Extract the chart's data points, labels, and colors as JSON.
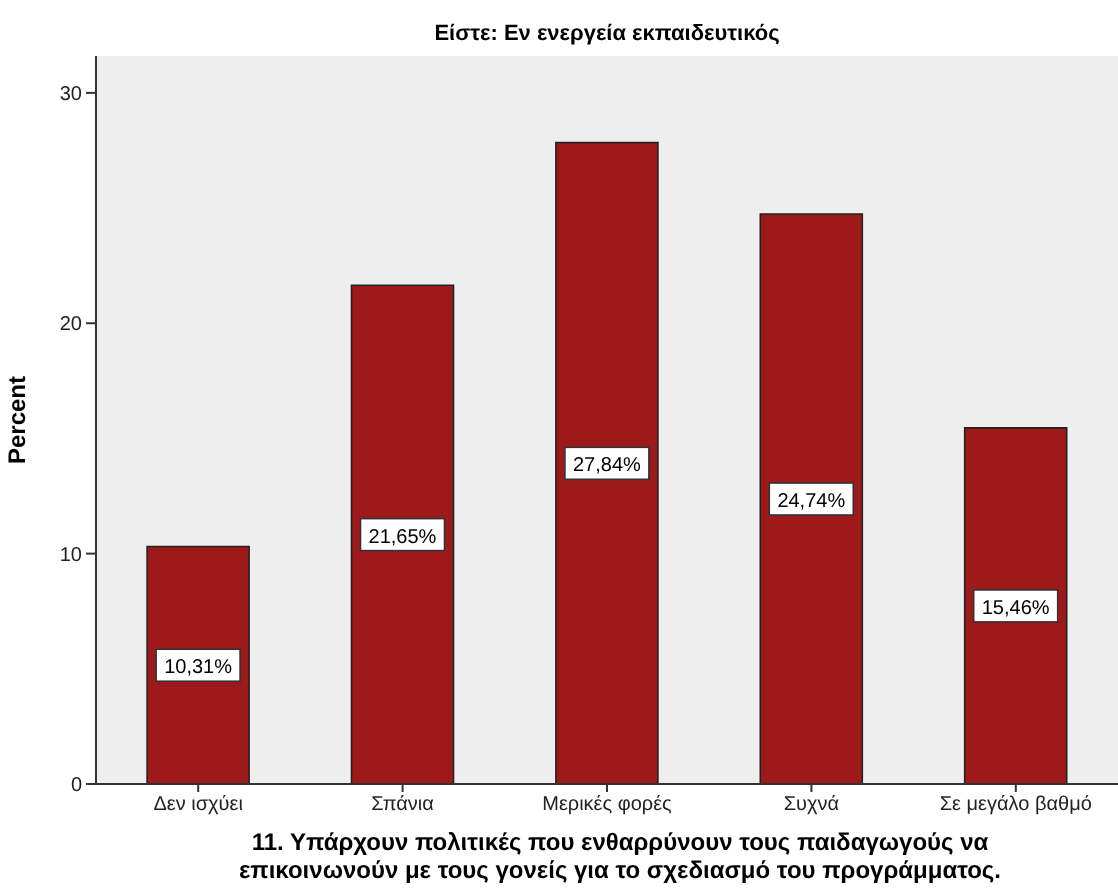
{
  "chart_data": {
    "type": "bar",
    "title": "Είστε: Εν ενεργεία εκπαιδευτικός",
    "xlabel": "11. Υπάρχουν πολιτικές που ενθαρρύνουν τους παιδαγωγούς να επικοινωνούν με τους γονείς για το σχεδιασμό του προγράμματος.",
    "ylabel": "Percent",
    "categories": [
      "Δεν ισχύει",
      "Σπάνια",
      "Μερικές φορές",
      "Συχνά",
      "Σε μεγάλο βαθμό"
    ],
    "values": [
      10.31,
      21.65,
      27.84,
      24.74,
      15.46
    ],
    "value_labels": [
      "10,31%",
      "21,65%",
      "27,84%",
      "24,74%",
      "15,46%"
    ],
    "color": "#9e1a1a",
    "ylim": [
      0,
      31.6
    ],
    "yticks": [
      0,
      10,
      20,
      30
    ]
  }
}
